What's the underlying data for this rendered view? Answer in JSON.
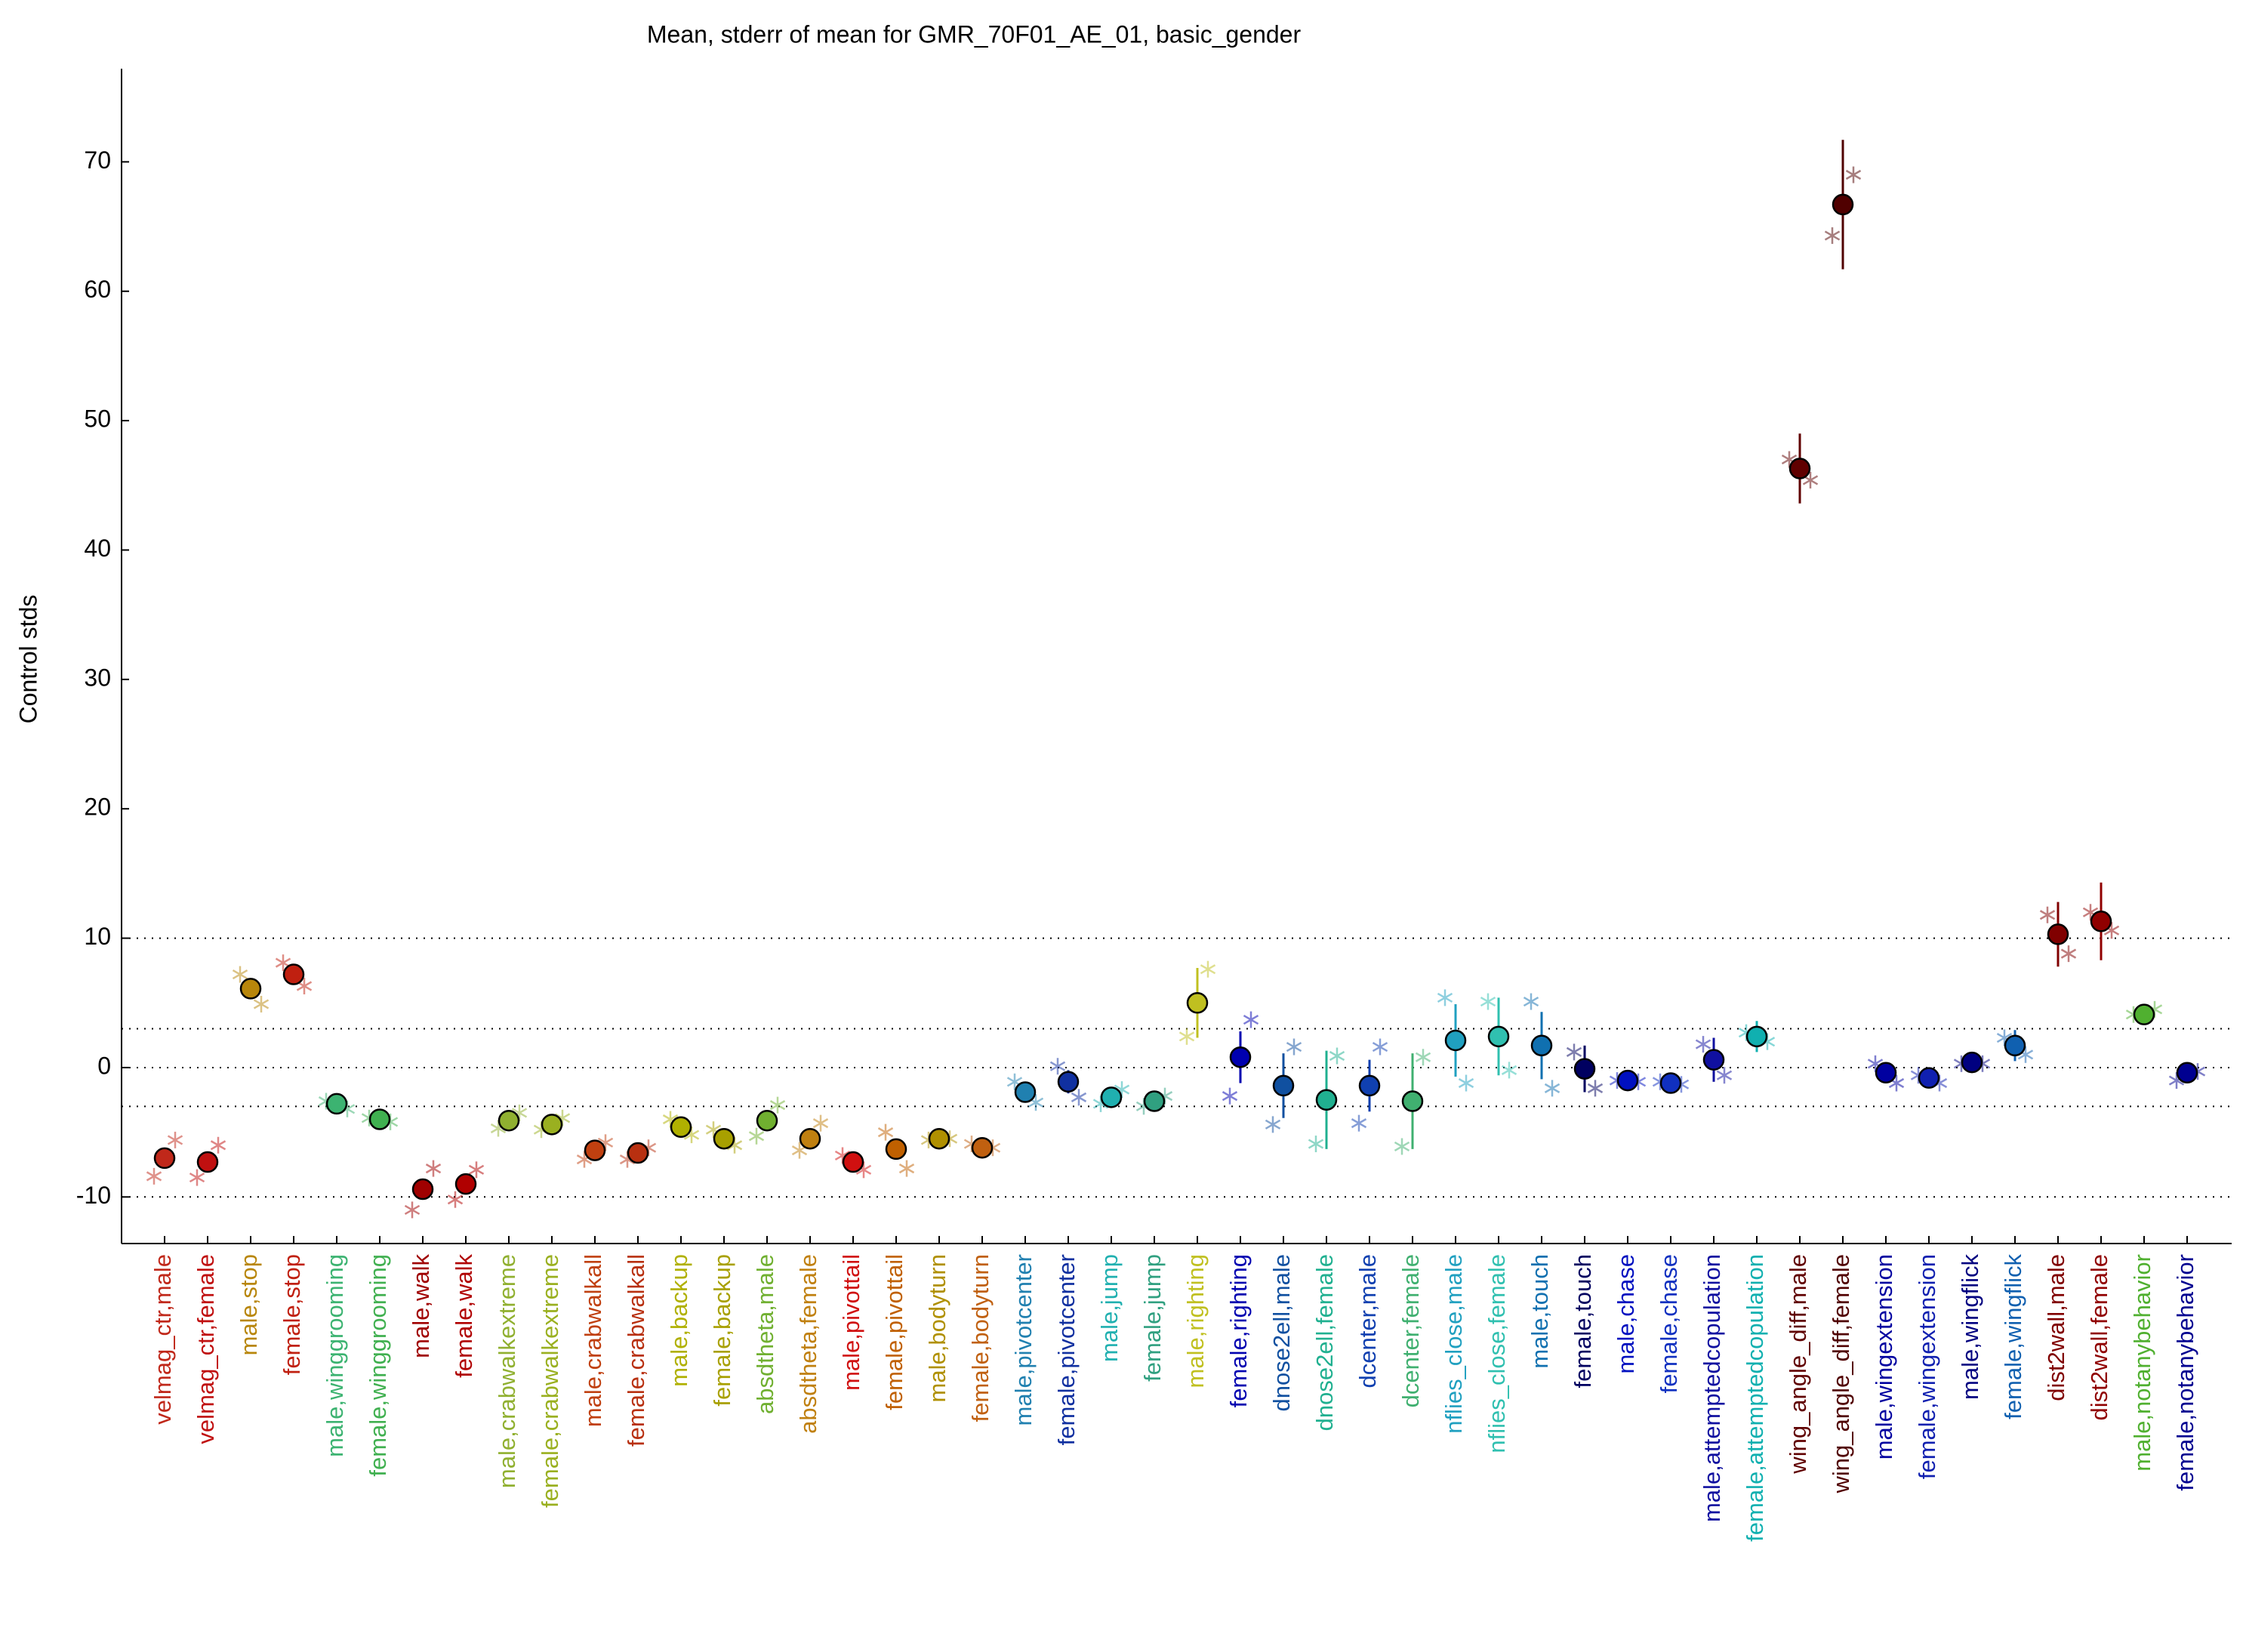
{
  "chart_data": {
    "type": "errorbar",
    "title": "Mean, stderr of mean for GMR_70F01_AE_01, basic_gender",
    "y_label": "Control stds",
    "categories": [
      "velmag_ctr,male",
      "velmag_ctr,female",
      "male,stop",
      "female,stop",
      "male,winggrooming",
      "female,winggrooming",
      "male,walk",
      "female,walk",
      "male,crabwalkextreme",
      "female,crabwalkextreme",
      "male,crabwalkall",
      "female,crabwalkall",
      "male,backup",
      "female,backup",
      "absdtheta,male",
      "absdtheta,female",
      "male,pivottail",
      "female,pivottail",
      "male,bodyturn",
      "female,bodyturn",
      "male,pivotcenter",
      "female,pivotcenter",
      "male,jump",
      "female,jump",
      "male,righting",
      "female,righting",
      "dnose2ell,male",
      "dnose2ell,female",
      "dcenter,male",
      "dcenter,female",
      "nflies_close,male",
      "nflies_close,female",
      "male,touch",
      "female,touch",
      "male,chase",
      "female,chase",
      "male,attemptedcopulation",
      "female,attemptedcopulation",
      "wing_angle_diff,male",
      "wing_angle_diff,female",
      "male,wingextension",
      "female,wingextension",
      "male,wingflick",
      "female,wingflick",
      "dist2wall,male",
      "dist2wall,female",
      "male,notanybehavior",
      "female,notanybehavior"
    ],
    "values": [
      -7.0,
      -7.3,
      6.1,
      7.2,
      -2.8,
      -4.0,
      -9.4,
      -9.0,
      -4.1,
      -4.4,
      -6.4,
      -6.6,
      -4.6,
      -5.5,
      -4.1,
      -5.5,
      -7.3,
      -6.3,
      -5.5,
      -6.2,
      -1.9,
      -1.1,
      -2.3,
      -2.6,
      5.0,
      0.8,
      -1.4,
      -2.5,
      -1.4,
      -2.6,
      2.1,
      2.4,
      1.7,
      -0.1,
      -1.0,
      -1.2,
      0.6,
      2.4,
      46.3,
      66.7,
      -0.4,
      -0.8,
      0.4,
      1.7,
      10.3,
      11.3,
      4.1,
      -0.4
    ],
    "errors": [
      0.4,
      0.4,
      0.5,
      0.5,
      0.3,
      0.3,
      0.5,
      0.6,
      0.4,
      0.4,
      0.4,
      0.3,
      0.4,
      0.4,
      0.7,
      0.6,
      0.3,
      0.5,
      0.3,
      0.3,
      0.6,
      0.9,
      0.4,
      0.3,
      2.7,
      2.0,
      2.5,
      3.8,
      2.0,
      3.7,
      2.8,
      3.0,
      2.6,
      1.8,
      0.3,
      0.3,
      1.7,
      1.2,
      2.7,
      5.0,
      0.5,
      0.3,
      0.3,
      1.2,
      2.5,
      3.0,
      0.4,
      0.4
    ],
    "colors": [
      "#c0281a",
      "#c01010",
      "#b8860b",
      "#c02010",
      "#3cb371",
      "#40b050",
      "#a00000",
      "#b00000",
      "#90b030",
      "#9ab020",
      "#c04010",
      "#b83010",
      "#b0b000",
      "#a8a000",
      "#70b030",
      "#c08010",
      "#d01010",
      "#c06000",
      "#b09000",
      "#c06010",
      "#2080b0",
      "#1030a0",
      "#20b0b0",
      "#30a080",
      "#c0c020",
      "#0000b0",
      "#1050a0",
      "#20b090",
      "#1040b0",
      "#40b070",
      "#20a0c0",
      "#30c0b0",
      "#1070b0",
      "#000060",
      "#0010c0",
      "#1030c0",
      "#1010a0",
      "#10b0b0",
      "#600000",
      "#500000",
      "#0000a0",
      "#1020b0",
      "#000080",
      "#1060b0",
      "#800000",
      "#900000",
      "#50b030",
      "#000090"
    ],
    "samples": [
      [
        -8.4,
        -5.6
      ],
      [
        -8.5,
        -6.0
      ],
      [
        7.2,
        4.9
      ],
      [
        8.1,
        6.3
      ],
      [
        -2.6,
        -3.2
      ],
      [
        -3.9,
        -4.2
      ],
      [
        -11.0,
        -7.8
      ],
      [
        -10.2,
        -7.9
      ],
      [
        -4.7,
        -3.5
      ],
      [
        -4.8,
        -3.9
      ],
      [
        -7.1,
        -5.8
      ],
      [
        -7.1,
        -6.2
      ],
      [
        -4.0,
        -5.2
      ],
      [
        -4.8,
        -6.0
      ],
      [
        -5.3,
        -2.9
      ],
      [
        -6.4,
        -4.3
      ],
      [
        -6.8,
        -7.9
      ],
      [
        -5.0,
        -7.8
      ],
      [
        -5.6,
        -5.5
      ],
      [
        -5.9,
        -6.2
      ],
      [
        -1.1,
        -2.7
      ],
      [
        0.1,
        -2.3
      ],
      [
        -2.8,
        -1.7
      ],
      [
        -3.0,
        -2.2
      ],
      [
        2.4,
        7.6
      ],
      [
        -2.2,
        3.7
      ],
      [
        -4.4,
        1.6
      ],
      [
        -5.9,
        0.9
      ],
      [
        -4.3,
        1.6
      ],
      [
        -6.1,
        0.8
      ],
      [
        5.4,
        -1.2
      ],
      [
        5.1,
        -0.2
      ],
      [
        5.1,
        -1.6
      ],
      [
        1.2,
        -1.6
      ],
      [
        -1.0,
        -1.1
      ],
      [
        -1.1,
        -1.3
      ],
      [
        1.8,
        -0.6
      ],
      [
        2.7,
        2.0
      ],
      [
        47.0,
        45.4
      ],
      [
        64.3,
        69.0
      ],
      [
        0.3,
        -1.2
      ],
      [
        -0.6,
        -1.2
      ],
      [
        0.3,
        0.3
      ],
      [
        2.3,
        1.0
      ],
      [
        11.8,
        8.8
      ],
      [
        12.0,
        10.6
      ],
      [
        4.1,
        4.5
      ],
      [
        -1.0,
        -0.3
      ]
    ],
    "reference_lines": [
      -10,
      -3,
      0,
      3,
      10
    ],
    "ylim": [
      -13.6,
      77.2
    ],
    "yticks": [
      -10,
      0,
      10,
      20,
      30,
      40,
      50,
      60,
      70
    ]
  }
}
